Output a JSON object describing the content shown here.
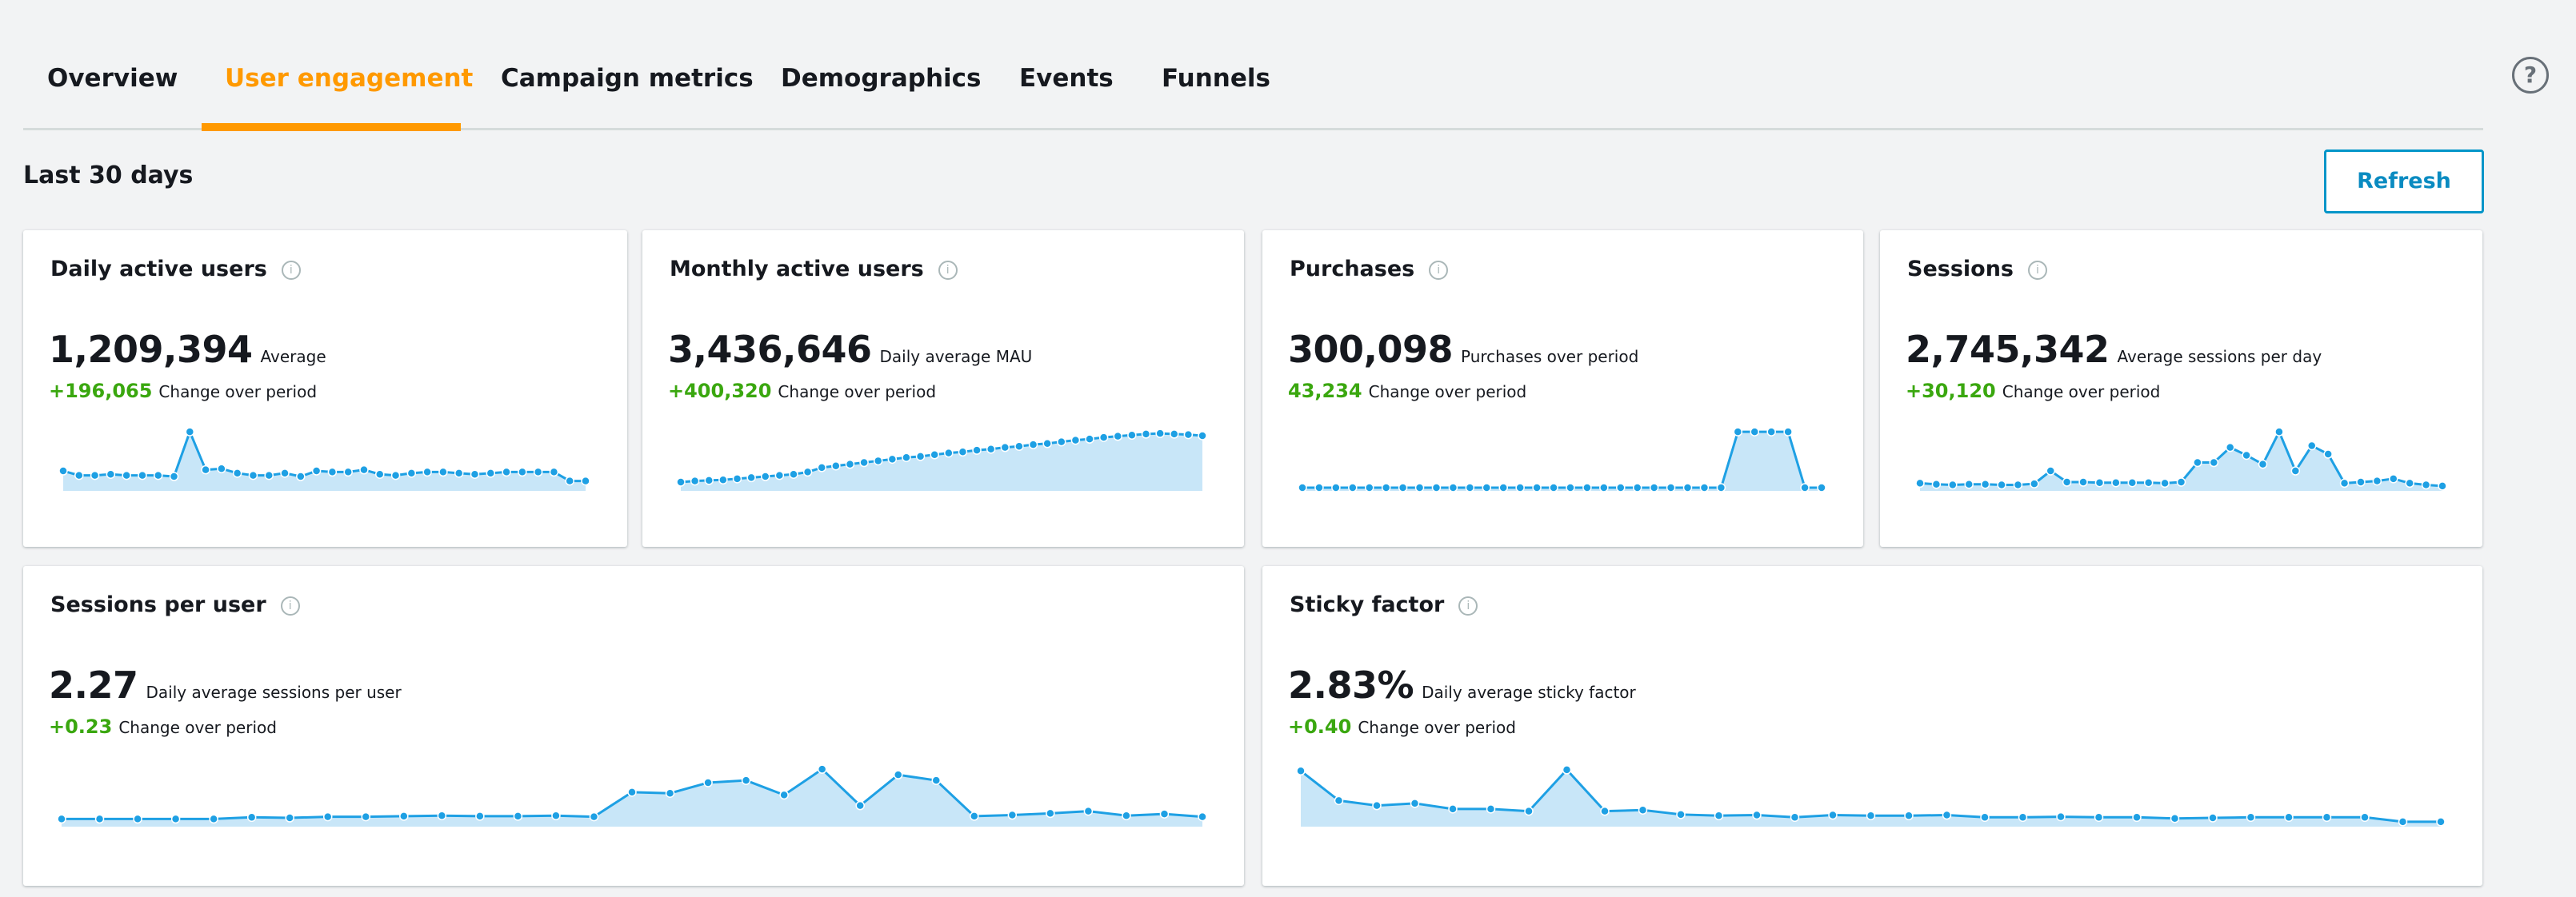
{
  "tabs": [
    {
      "label": "Overview",
      "active": false
    },
    {
      "label": "User engagement",
      "active": true
    },
    {
      "label": "Campaign metrics",
      "active": false
    },
    {
      "label": "Demographics",
      "active": false
    },
    {
      "label": "Events",
      "active": false
    },
    {
      "label": "Funnels",
      "active": false
    }
  ],
  "help_icon": "?",
  "period_label": "Last 30 days",
  "refresh_label": "Refresh",
  "colors": {
    "accent": "#ff9900",
    "positive": "#3aa70f",
    "line": "#1ea0e4",
    "area": "#c8e6f8",
    "link": "#0a8bc1"
  },
  "cards": [
    {
      "title": "Daily active users",
      "value": "1,209,394",
      "value_label": "Average",
      "change": "+196,065",
      "change_label": "Change over period",
      "series": [
        30,
        22,
        22,
        24,
        22,
        22,
        22,
        20,
        100,
        32,
        34,
        26,
        22,
        22,
        26,
        20,
        30,
        28,
        28,
        32,
        24,
        22,
        26,
        28,
        28,
        26,
        24,
        26,
        28,
        28,
        28,
        28,
        12,
        12
      ]
    },
    {
      "title": "Monthly active users",
      "value": "3,436,646",
      "value_label": "Daily average MAU",
      "change": "+400,320",
      "change_label": "Change over period",
      "series": [
        10,
        12,
        13,
        14,
        16,
        18,
        20,
        22,
        24,
        28,
        36,
        39,
        42,
        45,
        48,
        51,
        54,
        56,
        59,
        62,
        64,
        67,
        69,
        72,
        74,
        77,
        79,
        82,
        85,
        87,
        90,
        92,
        94,
        96,
        97,
        96,
        95,
        93
      ]
    },
    {
      "title": "Purchases",
      "value": "300,098",
      "value_label": "Purchases over period",
      "change": "43,234",
      "change_label": "Change over period",
      "series": [
        0,
        0,
        0,
        0,
        0,
        0,
        0,
        0,
        0,
        0,
        0,
        0,
        0,
        0,
        0,
        0,
        0,
        0,
        0,
        0,
        0,
        0,
        0,
        0,
        0,
        0,
        100,
        100,
        100,
        100,
        0,
        0
      ]
    },
    {
      "title": "Sessions",
      "value": "2,745,342",
      "value_label": "Average sessions per day",
      "change": "+30,120",
      "change_label": "Change over period",
      "series": [
        8,
        6,
        5,
        6,
        6,
        5,
        5,
        7,
        30,
        10,
        10,
        9,
        9,
        9,
        9,
        8,
        10,
        45,
        45,
        72,
        58,
        42,
        100,
        30,
        75,
        60,
        8,
        10,
        12,
        16,
        8,
        5,
        3
      ]
    },
    {
      "title": "Sessions per user",
      "value": "2.27",
      "value_label": "Daily average sessions per user",
      "change": "+0.23",
      "change_label": "Change over period",
      "series": [
        8,
        8,
        8,
        8,
        8,
        11,
        10,
        12,
        12,
        13,
        14,
        13,
        13,
        14,
        12,
        56,
        54,
        73,
        77,
        51,
        97,
        32,
        87,
        77,
        13,
        15,
        18,
        22,
        14,
        17,
        12
      ]
    },
    {
      "title": "Sticky factor",
      "value": "2.83%",
      "value_label": "Daily average sticky factor",
      "change": "+0.40",
      "change_label": "Change over period",
      "series": [
        94,
        41,
        32,
        36,
        26,
        26,
        22,
        96,
        22,
        24,
        16,
        14,
        15,
        11,
        15,
        14,
        14,
        15,
        11,
        11,
        12,
        11,
        11,
        9,
        10,
        11,
        11,
        11,
        11,
        3,
        3
      ]
    }
  ]
}
